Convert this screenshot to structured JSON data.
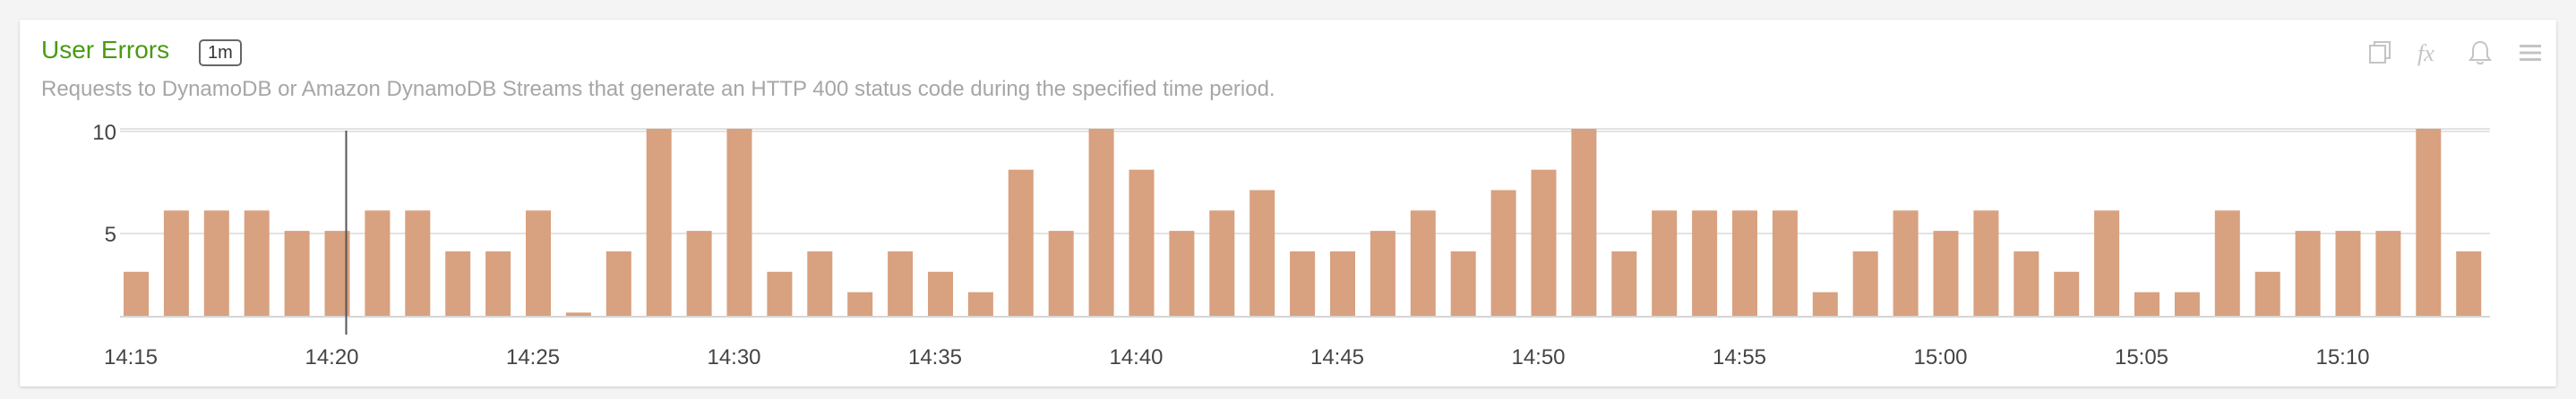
{
  "panel": {
    "title": "User Errors",
    "interval_badge": "1m",
    "description": "Requests to DynamoDB or Amazon DynamoDB Streams that generate an HTTP 400 status code during the specified time period.",
    "tools": [
      "copy-icon",
      "fx-icon",
      "bell-icon",
      "menu-icon"
    ]
  },
  "colors": {
    "bar": "#d8a17f",
    "title": "#4a9a12",
    "grid": "#e3e3e3",
    "axis_text": "#444444",
    "cursor": "#555555"
  },
  "chart_data": {
    "type": "bar",
    "x_start": "14:15",
    "x_step_minutes": 1,
    "x_tick_labels": [
      "14:15",
      "14:20",
      "14:25",
      "14:30",
      "14:35",
      "14:40",
      "14:45",
      "14:50",
      "14:55",
      "15:00",
      "15:05",
      "15:10"
    ],
    "y_tick_labels": [
      "5",
      "10"
    ],
    "y_ticks": [
      5,
      10
    ],
    "ylim": [
      1.8,
      11
    ],
    "values": [
      4,
      7,
      7,
      7,
      6,
      6,
      7,
      7,
      5,
      5,
      7,
      2,
      5,
      11,
      6,
      11,
      4,
      5,
      3,
      5,
      4,
      3,
      9,
      6,
      11,
      9,
      6,
      7,
      8,
      5,
      5,
      6,
      7,
      5,
      8,
      9,
      11,
      5,
      7,
      7,
      7,
      7,
      3,
      5,
      7,
      6,
      7,
      5,
      4,
      7,
      3,
      3,
      7,
      4,
      6,
      6,
      6,
      11,
      5
    ],
    "cursor_time": "14:20",
    "grid": true
  }
}
